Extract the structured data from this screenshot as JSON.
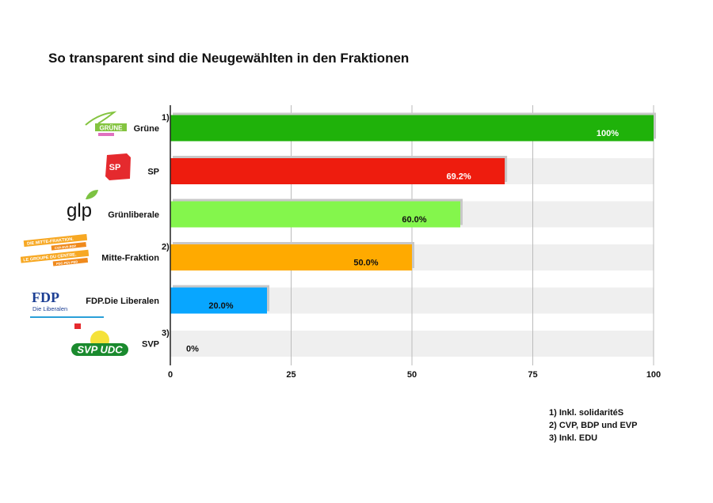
{
  "chart_data": {
    "type": "bar",
    "orientation": "horizontal",
    "title": "So transparent sind die Neugewählten in den Fraktionen",
    "categories": [
      "Grüne",
      "SP",
      "Grünliberale",
      "Mitte-Fraktion",
      "FDP.Die Liberalen",
      "SVP"
    ],
    "category_notes": [
      "1)",
      "",
      "",
      "2)",
      "",
      "3)"
    ],
    "values": [
      100,
      69.2,
      60.0,
      50.0,
      20.0,
      0
    ],
    "data_labels": [
      "100%",
      "69.2%",
      "60.0%",
      "50.0%",
      "20.0%",
      "0%"
    ],
    "colors": [
      "#1fb20a",
      "#ee1c0e",
      "#84f64c",
      "#ffaa00",
      "#08a6ff",
      "#cccccc"
    ],
    "xlim": [
      0,
      100
    ],
    "xticks": [
      "0",
      "25",
      "50",
      "75",
      "100"
    ],
    "grid": true,
    "footnotes": [
      "1)  Inkl. solidaritéS",
      "2)  CVP, BDP und EVP",
      "3)  Inkl. EDU"
    ],
    "logos": {
      "gruene": "GRÜNE",
      "sp": "SP",
      "glp": "glp",
      "mitte": [
        "DIE MITTE-FRAKTION.",
        "CVP-EVP-BDP",
        "LE GROUPE DU CENTRE.",
        "PDC-PEV-PBD"
      ],
      "fdp": [
        "FDP",
        "Die Liberalen"
      ],
      "svp": "SVP UDC"
    }
  }
}
